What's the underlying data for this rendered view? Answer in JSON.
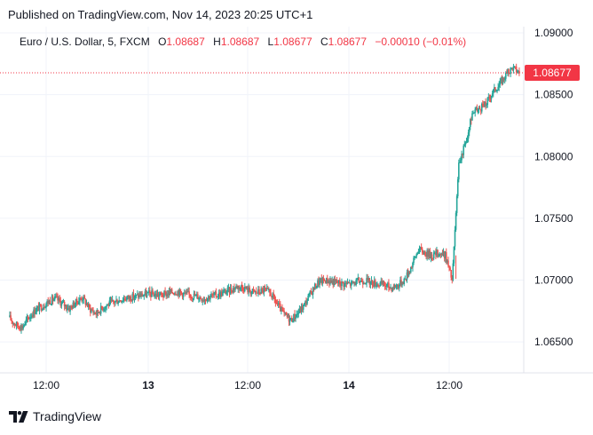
{
  "header": {
    "published_text": "Published on TradingView.com, Nov 14, 2023 20:25 UTC+1"
  },
  "legend": {
    "symbol": "Euro / U.S. Dollar, 5, FXCM",
    "open_label": "O",
    "open_value": "1.08687",
    "high_label": "H",
    "high_value": "1.08687",
    "low_label": "L",
    "low_value": "1.08677",
    "close_label": "C",
    "close_value": "1.08677",
    "change": "−0.00010 (−0.01%)"
  },
  "footer": {
    "brand": "TradingView"
  },
  "colors": {
    "up": "#26a69a",
    "down": "#ef5350",
    "last_price": "#f23645",
    "grid": "#f0f3fa",
    "text": "#131722"
  },
  "chart_data": {
    "type": "candlestick",
    "symbol": "Euro / U.S. Dollar",
    "interval": "5",
    "source": "FXCM",
    "ylim": [
      1.0625,
      1.0905
    ],
    "y_ticks": [
      "1.09000",
      "1.08500",
      "1.08000",
      "1.07500",
      "1.07000",
      "1.06500"
    ],
    "y_tick_values": [
      1.09,
      1.085,
      1.08,
      1.075,
      1.07,
      1.065
    ],
    "x_ticks": [
      {
        "label": "12:00",
        "bold": false
      },
      {
        "label": "13",
        "bold": true
      },
      {
        "label": "12:00",
        "bold": false
      },
      {
        "label": "14",
        "bold": true
      },
      {
        "label": "12:00",
        "bold": false
      }
    ],
    "last_price": 1.08677,
    "last_price_label": "1.08677",
    "series": [
      {
        "values": [
          1.067,
          1.0664,
          1.0662,
          1.067,
          1.0676,
          1.0679,
          1.0683,
          1.0685,
          1.0681,
          1.0677,
          1.0682,
          1.0686,
          1.0677,
          1.0673,
          1.0678,
          1.0681,
          1.0683,
          1.0685,
          1.0686,
          1.0687,
          1.0688,
          1.0689,
          1.0688,
          1.0688,
          1.069,
          1.0691,
          1.0689,
          1.0688,
          1.0687,
          1.0685,
          1.0687,
          1.0688,
          1.069,
          1.0692,
          1.0695,
          1.0694,
          1.0691,
          1.069,
          1.0692,
          1.0689,
          1.068,
          1.0672,
          1.0668,
          1.0673,
          1.068,
          1.069,
          1.0698,
          1.07,
          1.0699,
          1.0698,
          1.0697,
          1.0697,
          1.0699,
          1.07,
          1.0698,
          1.0697,
          1.0696,
          1.0694,
          1.0696,
          1.0701,
          1.0712,
          1.0725,
          1.0722,
          1.072,
          1.0722,
          1.072,
          1.07,
          1.0795,
          1.081,
          1.0835,
          1.0838,
          1.0842,
          1.0852,
          1.0858,
          1.0866,
          1.0872,
          1.0868
        ]
      }
    ]
  }
}
